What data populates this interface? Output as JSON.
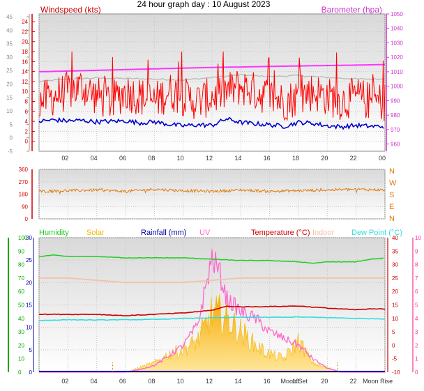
{
  "title": "24 hour graph day : 10 August 2023",
  "colors": {
    "wind": "#ff0000",
    "wind_avg": "#0000cc",
    "baro": "#ff33ff",
    "gust_band": "#bbbbbb",
    "winddir": "#e07a10",
    "humidity": "#22cc22",
    "solar": "#f5b800",
    "rainfall": "#0000aa",
    "uv": "#ff66cc",
    "temperature": "#cc0000",
    "indoor": "#f5c0a8",
    "dewpoint": "#33dddd",
    "left_axis_green": "#00aa00",
    "left_axis_red": "#cc0000",
    "right_axis_magenta": "#cc33cc",
    "right_axis_red": "#cc0000",
    "right_axis_pink": "#ff3399"
  },
  "chart_data": [
    {
      "type": "line",
      "panel": "wind-baro",
      "x_ticks": [
        "02",
        "04",
        "06",
        "08",
        "10",
        "12",
        "14",
        "16",
        "18",
        "20",
        "22",
        "00"
      ],
      "y_left_label": "Windspeed (kts)",
      "y_left_outer_ticks": [
        -5,
        0,
        5,
        10,
        15,
        20,
        25,
        30,
        35,
        40,
        45
      ],
      "y_left_inner_ticks": [
        0,
        2,
        4,
        6,
        8,
        10,
        12,
        14,
        16,
        18,
        20,
        22,
        24
      ],
      "y_right_label": "Barometer (hpa)",
      "y_right_ticks": [
        960,
        970,
        980,
        990,
        1000,
        1010,
        1020,
        1030,
        1040,
        1050
      ],
      "ylim_left_inner": [
        0,
        25
      ],
      "ylim_right": [
        955,
        1050
      ],
      "grid": true,
      "series": [
        {
          "name": "Windspeed (kts)",
          "x": [
            0,
            1,
            2,
            3,
            4,
            5,
            6,
            7,
            8,
            9,
            10,
            11,
            12,
            13,
            14,
            15,
            16,
            17,
            18,
            19,
            20,
            21,
            22,
            23,
            24
          ],
          "values": [
            8,
            9,
            10,
            11,
            9,
            8,
            10,
            9,
            8,
            10,
            9,
            8,
            9,
            10,
            11,
            10,
            9,
            8,
            9,
            10,
            9,
            8,
            9,
            8,
            8
          ]
        },
        {
          "name": "wind average",
          "x": [
            0,
            1,
            2,
            3,
            4,
            5,
            6,
            7,
            8,
            9,
            10,
            11,
            12,
            13,
            14,
            15,
            16,
            17,
            18,
            19,
            20,
            21,
            22,
            23,
            24
          ],
          "values": [
            4,
            4.3,
            4.1,
            4.2,
            3.9,
            4.0,
            4.1,
            3.7,
            3.9,
            3.4,
            3.1,
            3.3,
            3.2,
            4.5,
            3.8,
            3.5,
            3.3,
            3.0,
            3.8,
            3.6,
            3.1,
            2.9,
            3.2,
            3.0,
            3.0
          ]
        },
        {
          "name": "Barometer (hpa)",
          "x": [
            0,
            2,
            4,
            6,
            8,
            10,
            12,
            14,
            16,
            18,
            20,
            22,
            24
          ],
          "values": [
            1010,
            1010.5,
            1011,
            1011.5,
            1012,
            1012.5,
            1013,
            1013.3,
            1013.7,
            1014,
            1014.3,
            1014.6,
            1015
          ]
        },
        {
          "name": "gust band",
          "x": [
            0,
            2,
            4,
            6,
            8,
            10,
            12,
            14,
            16,
            18,
            20,
            22,
            24
          ],
          "values": [
            12,
            12.5,
            12.7,
            12.6,
            12.5,
            12.3,
            12.8,
            13.3,
            13.0,
            13.2,
            12.8,
            12.5,
            12.5
          ]
        }
      ]
    },
    {
      "type": "line",
      "panel": "wind-direction",
      "y_left_ticks": [
        0,
        90,
        180,
        270,
        360
      ],
      "y_right_ticks": [
        "N",
        "W",
        "S",
        "E",
        "N"
      ],
      "ylim": [
        0,
        360
      ],
      "grid": true,
      "series": [
        {
          "name": "wind direction",
          "x": [
            0,
            2,
            4,
            6,
            8,
            10,
            12,
            14,
            16,
            18,
            20,
            22,
            24
          ],
          "values": [
            200,
            205,
            210,
            200,
            215,
            205,
            200,
            210,
            200,
            205,
            210,
            215,
            210
          ]
        }
      ]
    },
    {
      "type": "line",
      "panel": "temperature-humidity",
      "legend": [
        "Humidity",
        "Solar",
        "Rainfall (mm)",
        "UV",
        "Temperature (°C)",
        "Indoor",
        "Dew Point (°C)"
      ],
      "x_ticks": [
        "02",
        "04",
        "06",
        "08",
        "10",
        "12",
        "14",
        "16",
        "18",
        "20",
        "22"
      ],
      "x_annotations": [
        "Moon Set",
        "Moon Rise"
      ],
      "y_humidity_ticks": [
        0,
        10,
        20,
        30,
        40,
        50,
        60,
        70,
        80,
        90,
        100
      ],
      "y_rain_ticks": [
        0,
        5,
        10,
        15,
        20,
        25,
        30
      ],
      "y_temp_ticks": [
        -10,
        -5,
        0,
        5,
        10,
        15,
        20,
        25,
        30,
        35,
        40
      ],
      "y_uv_ticks": [
        0,
        1,
        2,
        3,
        4,
        5,
        6,
        7,
        8,
        9,
        10
      ],
      "ylim_humidity": [
        0,
        100
      ],
      "ylim_temp": [
        -10,
        40
      ],
      "grid": true,
      "series": [
        {
          "name": "Humidity",
          "x": [
            0,
            1,
            2,
            4,
            6,
            8,
            10,
            12,
            14,
            16,
            18,
            19,
            20,
            22,
            23,
            24
          ],
          "values": [
            86,
            87,
            86,
            86,
            85,
            85,
            85,
            84,
            83,
            83,
            82,
            81,
            82,
            82,
            84,
            85
          ]
        },
        {
          "name": "Indoor",
          "x": [
            0,
            2,
            4,
            6,
            8,
            10,
            12,
            14,
            16,
            18,
            20,
            22,
            24
          ],
          "values": [
            21,
            21,
            20.5,
            20,
            20,
            20,
            20.5,
            21,
            21,
            21,
            21,
            21,
            21
          ]
        },
        {
          "name": "Temperature (°C)",
          "x": [
            0,
            2,
            4,
            6,
            8,
            10,
            12,
            13,
            14,
            16,
            18,
            20,
            22,
            23,
            24
          ],
          "values": [
            11.5,
            11.5,
            11.5,
            11,
            11.5,
            12,
            13,
            14.5,
            14.3,
            14.4,
            14.6,
            13.8,
            13.2,
            13.5,
            13.5
          ]
        },
        {
          "name": "Dew Point (°C)",
          "x": [
            0,
            2,
            4,
            6,
            8,
            10,
            12,
            14,
            16,
            18,
            20,
            22,
            24
          ],
          "values": [
            9.2,
            9.5,
            9.4,
            9.5,
            9.6,
            10,
            10.2,
            10.4,
            10.4,
            10.5,
            10.3,
            10,
            9.8
          ]
        },
        {
          "name": "UV",
          "x": [
            0,
            6,
            7,
            8,
            9,
            10,
            11,
            12,
            12.5,
            13,
            14,
            15,
            16,
            17,
            18,
            19,
            20,
            21,
            24
          ],
          "values": [
            0,
            0,
            0.2,
            0.5,
            1.2,
            2,
            3.5,
            8.5,
            7.5,
            5.5,
            4.5,
            4,
            3,
            2.5,
            2,
            1,
            0.3,
            0,
            0
          ]
        },
        {
          "name": "Solar",
          "x": [
            0,
            6,
            7,
            8,
            9,
            10,
            11,
            12,
            12.5,
            13,
            14,
            15,
            16,
            17,
            18,
            19,
            20,
            21,
            24
          ],
          "values": [
            0,
            0,
            1,
            2,
            4,
            5,
            7,
            13,
            13,
            12,
            9,
            6,
            4,
            3,
            7,
            2,
            1,
            0,
            0
          ]
        },
        {
          "name": "Rainfall (mm)",
          "x": [
            0,
            24
          ],
          "values": [
            0,
            0
          ]
        }
      ]
    }
  ]
}
